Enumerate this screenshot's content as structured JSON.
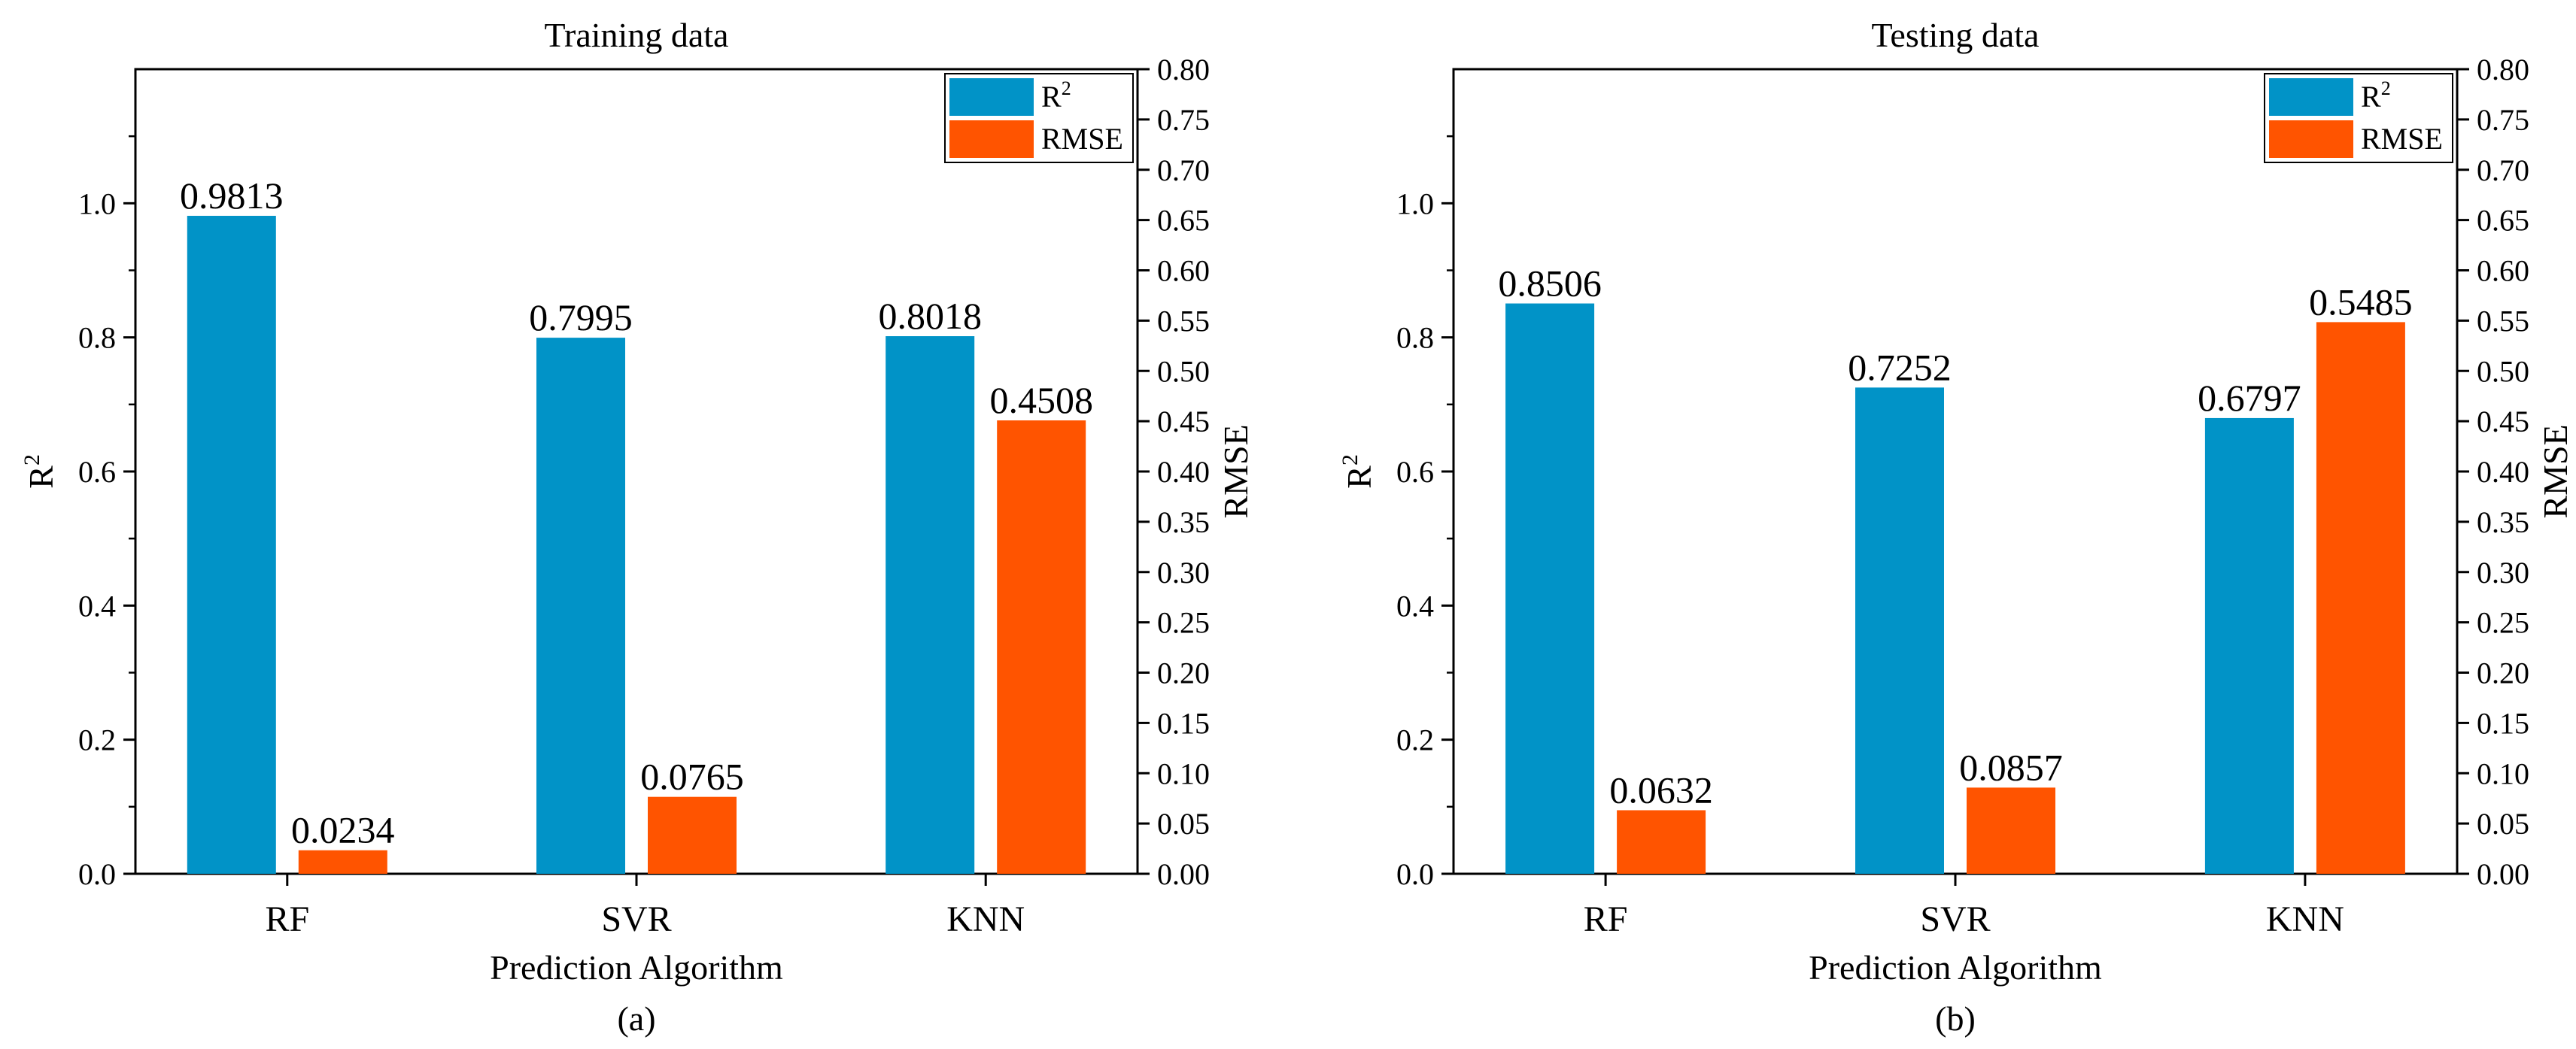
{
  "colors": {
    "r2": "#0193C7",
    "rmse": "#FF5400"
  },
  "chart_data": [
    {
      "type": "bar",
      "title": "Training data",
      "panel_label": "(a)",
      "xlabel": "Prediction Algorithm",
      "ylabel": "R",
      "ylabel_sup": "2",
      "y2label": "RMSE",
      "categories": [
        "RF",
        "SVR",
        "KNN"
      ],
      "ylim": [
        0,
        1.2
      ],
      "yticks": [
        "0.0",
        "0.2",
        "0.4",
        "0.6",
        "0.8",
        "1.0"
      ],
      "y2lim": [
        0,
        0.8
      ],
      "y2ticks": [
        "0.00",
        "0.05",
        "0.10",
        "0.15",
        "0.20",
        "0.25",
        "0.30",
        "0.35",
        "0.40",
        "0.45",
        "0.50",
        "0.55",
        "0.60",
        "0.65",
        "0.70",
        "0.75",
        "0.80"
      ],
      "legend": {
        "position": "top-right",
        "entries": [
          {
            "label": "R",
            "sup": "2"
          },
          {
            "label": "RMSE",
            "sup": ""
          }
        ]
      },
      "series": [
        {
          "name": "R2",
          "axis": "left",
          "values": [
            0.9813,
            0.7995,
            0.8018
          ],
          "labels": [
            "0.9813",
            "0.7995",
            "0.8018"
          ]
        },
        {
          "name": "RMSE",
          "axis": "right",
          "values": [
            0.0234,
            0.0765,
            0.4508
          ],
          "labels": [
            "0.0234",
            "0.0765",
            "0.4508"
          ]
        }
      ]
    },
    {
      "type": "bar",
      "title": "Testing data",
      "panel_label": "(b)",
      "xlabel": "Prediction Algorithm",
      "ylabel": "R",
      "ylabel_sup": "2",
      "y2label": "RMSE",
      "categories": [
        "RF",
        "SVR",
        "KNN"
      ],
      "ylim": [
        0,
        1.2
      ],
      "yticks": [
        "0.0",
        "0.2",
        "0.4",
        "0.6",
        "0.8",
        "1.0"
      ],
      "y2lim": [
        0,
        0.8
      ],
      "y2ticks": [
        "0.00",
        "0.05",
        "0.10",
        "0.15",
        "0.20",
        "0.25",
        "0.30",
        "0.35",
        "0.40",
        "0.45",
        "0.50",
        "0.55",
        "0.60",
        "0.65",
        "0.70",
        "0.75",
        "0.80"
      ],
      "legend": {
        "position": "top-right",
        "entries": [
          {
            "label": "R",
            "sup": "2"
          },
          {
            "label": "RMSE",
            "sup": ""
          }
        ]
      },
      "series": [
        {
          "name": "R2",
          "axis": "left",
          "values": [
            0.8506,
            0.7252,
            0.6797
          ],
          "labels": [
            "0.8506",
            "0.7252",
            "0.6797"
          ]
        },
        {
          "name": "RMSE",
          "axis": "right",
          "values": [
            0.0632,
            0.0857,
            0.5485
          ],
          "labels": [
            "0.0632",
            "0.0857",
            "0.5485"
          ]
        }
      ]
    }
  ]
}
